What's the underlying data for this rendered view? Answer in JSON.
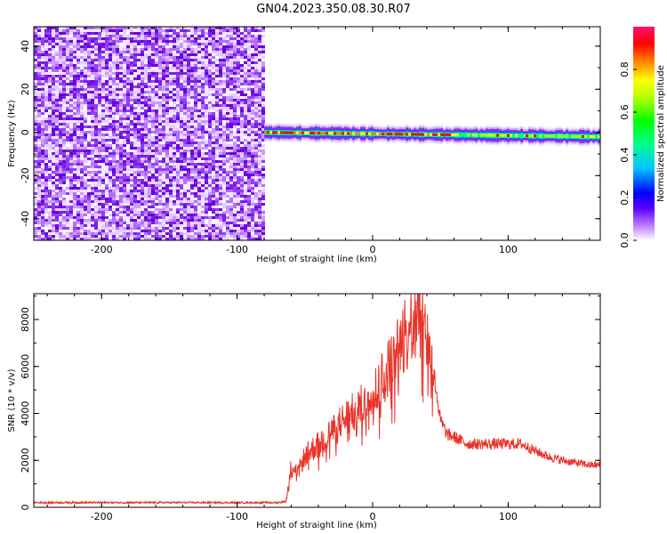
{
  "title": "GN04.2023.350.08.30.R07",
  "colors": {
    "snr_line": "#e8332a",
    "colormap": [
      "#f7f7ff",
      "#e6d2ff",
      "#c68cff",
      "#8a2be2",
      "#5a00ff",
      "#0000ff",
      "#0080ff",
      "#00ffff",
      "#00ff80",
      "#00ff00",
      "#aaff00",
      "#ffff00",
      "#ff8000",
      "#ff0000",
      "#ff1070"
    ]
  },
  "chart_data": [
    {
      "type": "heatmap",
      "xlabel": "Height of straight line (km)",
      "ylabel": "Frequency (Hz)",
      "xlim": [
        -250,
        168
      ],
      "ylim": [
        -50,
        49
      ],
      "xticks": [
        -200,
        -100,
        0,
        100
      ],
      "yticks": [
        -40,
        -20,
        0,
        20,
        40
      ],
      "colorbar": {
        "label": "Normalized spectral amplitude",
        "range": [
          0,
          1
        ],
        "ticks": [
          0.0,
          0.2,
          0.4,
          0.6,
          0.8
        ]
      },
      "noise_region_x": [
        -250,
        -80
      ],
      "signal": {
        "x_start": -80,
        "x_end": 168,
        "freq_start": 0,
        "freq_end": -2,
        "peak_amplitude": 1.0
      }
    },
    {
      "type": "line",
      "xlabel": "Height of straight line (km)",
      "ylabel": "SNR (10 * v/v)",
      "xlim": [
        -250,
        168
      ],
      "ylim": [
        0,
        9100
      ],
      "xticks": [
        -200,
        -100,
        0,
        100
      ],
      "yticks": [
        0,
        2000,
        4000,
        6000,
        8000
      ],
      "series": [
        {
          "name": "",
          "x": [
            -250,
            -150,
            -70,
            -64,
            -62,
            -60,
            -55,
            -50,
            -40,
            -30,
            -20,
            -10,
            0,
            10,
            20,
            28,
            33,
            38,
            45,
            50,
            55,
            60,
            70,
            80,
            90,
            100,
            110,
            120,
            130,
            140,
            150,
            160,
            168
          ],
          "y": [
            200,
            200,
            200,
            250,
            1000,
            1800,
            1500,
            2200,
            2700,
            3200,
            3800,
            4200,
            4800,
            5800,
            6800,
            7800,
            8600,
            7800,
            5800,
            3700,
            3100,
            3000,
            2700,
            2700,
            2700,
            2700,
            2700,
            2400,
            2150,
            2000,
            1900,
            1800,
            1800
          ]
        }
      ]
    }
  ]
}
